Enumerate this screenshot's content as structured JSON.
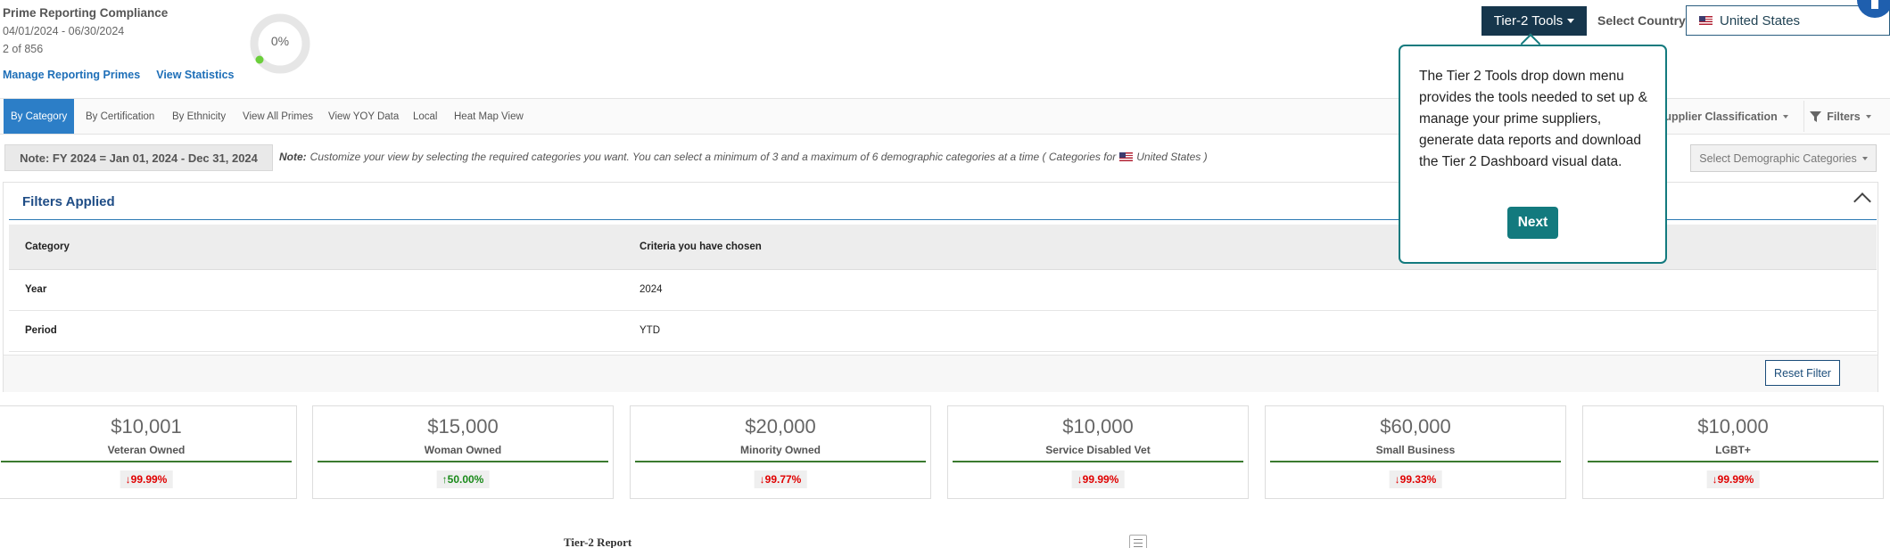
{
  "header": {
    "title": "Prime Reporting Compliance",
    "dates": "04/01/2024 - 06/30/2024",
    "count": "2 of 856",
    "compliance_pct": "0%",
    "links": [
      "Manage Reporting Primes",
      "View Statistics"
    ]
  },
  "tier_tools": {
    "label": "Tier-2 Tools"
  },
  "country": {
    "label": "Select Country",
    "value": "United States"
  },
  "tabs": [
    "By Category",
    "By Certification",
    "By Ethnicity",
    "View All Primes",
    "View YOY Data",
    "Local",
    "Heat Map View"
  ],
  "toolbar": {
    "supplier_classification": "Supplier Classification",
    "filters": "Filters"
  },
  "note": {
    "badge": "Note: FY 2024 = Jan 01, 2024 - Dec 31, 2024",
    "prefix": "Note:",
    "text": "Customize your view by selecting the required categories you want. You can select a minimum of 3 and a maximum of 6 demographic categories at a time ( Categories for",
    "country": "United States )",
    "demographic_select": "Select Demographic Categories"
  },
  "filters_applied": {
    "title": "Filters Applied",
    "headers": [
      "Category",
      "Criteria you have chosen"
    ],
    "rows": [
      {
        "category": "Year",
        "criteria": "2024"
      },
      {
        "category": "Period",
        "criteria": "YTD"
      }
    ],
    "reset_label": "Reset Filter"
  },
  "cards": [
    {
      "value": "$10,001",
      "label": "Veteran Owned",
      "change": "99.99%",
      "dir": "down"
    },
    {
      "value": "$15,000",
      "label": "Woman Owned",
      "change": "50.00%",
      "dir": "up"
    },
    {
      "value": "$20,000",
      "label": "Minority Owned",
      "change": "99.77%",
      "dir": "down"
    },
    {
      "value": "$10,000",
      "label": "Service Disabled Vet",
      "change": "99.99%",
      "dir": "down"
    },
    {
      "value": "$60,000",
      "label": "Small Business",
      "change": "99.33%",
      "dir": "down"
    },
    {
      "value": "$10,000",
      "label": "LGBT+",
      "change": "99.99%",
      "dir": "down"
    }
  ],
  "report": {
    "title": "Tier-2 Report"
  },
  "popover": {
    "text": "The Tier 2 Tools drop down menu provides the tools needed to set up & manage your prime suppliers, generate data reports and download the Tier 2 Dashboard visual data.",
    "next_label": "Next"
  },
  "colors": {
    "accent": "#2c7ec7",
    "teal": "#137a7e",
    "navy": "#16364c",
    "down": "#e00000",
    "up": "#1a8a1a"
  }
}
